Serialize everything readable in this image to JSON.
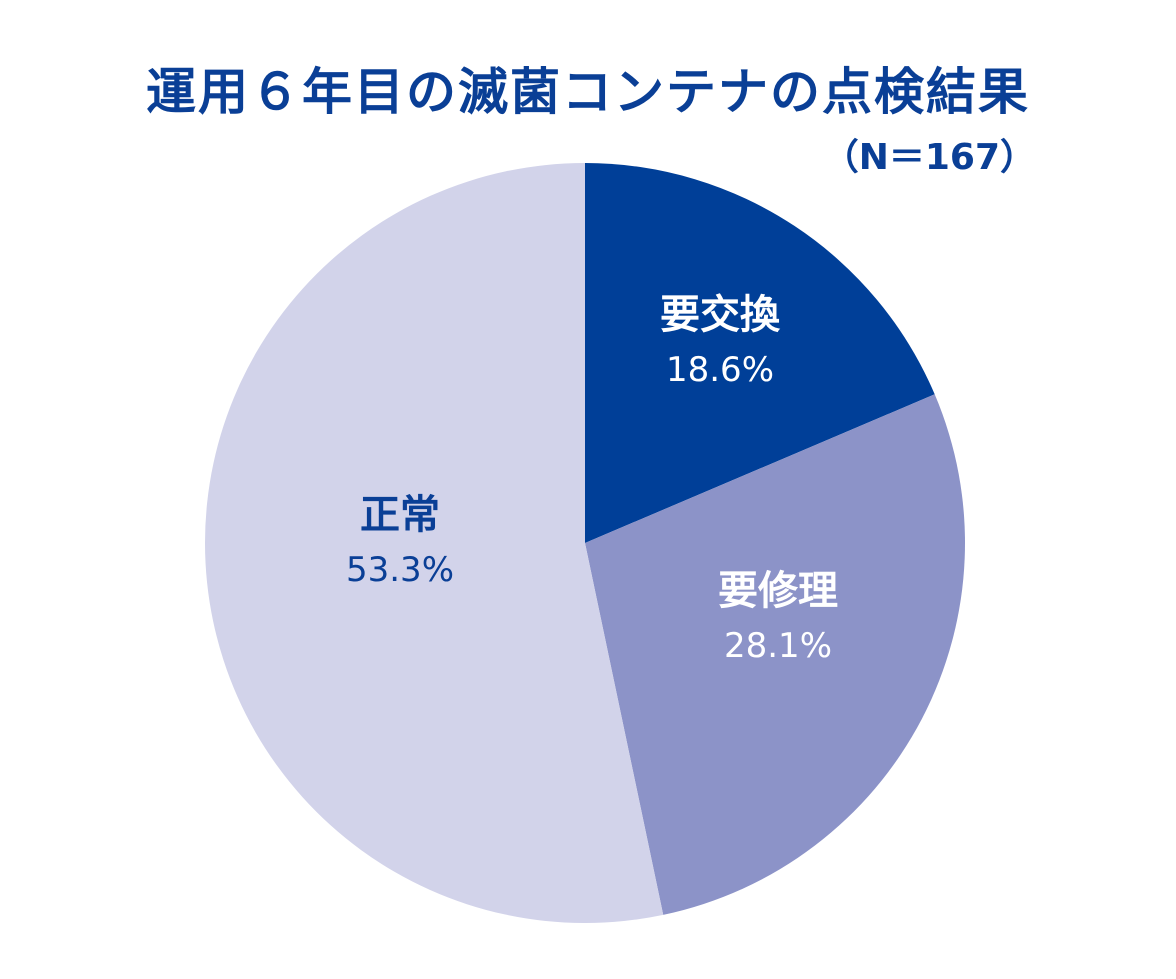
{
  "chart_data": {
    "type": "pie",
    "title": "運用６年目の滅菌コンテナの点検結果",
    "subtitle": "（N＝167）",
    "categories": [
      "要交換",
      "要修理",
      "正常"
    ],
    "values": [
      18.6,
      28.1,
      53.3
    ],
    "labels": [
      "18.6%",
      "28.1%",
      "53.3%"
    ],
    "colors": [
      "#003f98",
      "#8c93c8",
      "#d2d3ea"
    ],
    "label_colors": [
      "#ffffff",
      "#ffffff",
      "#0a3f96"
    ],
    "start_angle": "12 o'clock, clockwise"
  }
}
